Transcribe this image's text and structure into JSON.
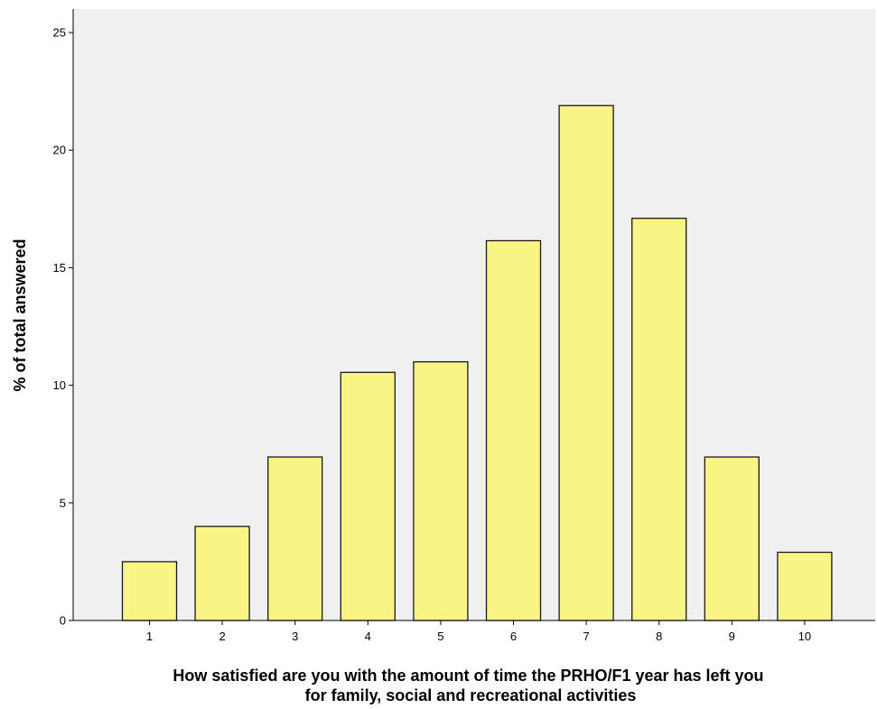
{
  "chart_data": {
    "type": "bar",
    "categories": [
      "1",
      "2",
      "3",
      "4",
      "5",
      "6",
      "7",
      "8",
      "9",
      "10"
    ],
    "values": [
      2.5,
      4.0,
      6.95,
      10.55,
      11.0,
      16.15,
      21.9,
      17.1,
      6.95,
      2.9
    ],
    "xlabel": "How satisfied are you with the amount of time the PRHO/F1 year has left you for family, social and recreational activities",
    "xlabel_lines": [
      "How satisfied are you with the amount of time the PRHO/F1 year has left you",
      "for family, social and recreational activities"
    ],
    "ylabel": "% of total answered",
    "ylim": [
      0,
      26
    ],
    "yticks": [
      0,
      5,
      10,
      15,
      20,
      25
    ],
    "grid": false,
    "colors": {
      "bar_fill": "#f8f584",
      "bar_stroke": "#1a1a1a",
      "plot_background": "#f0f0f0",
      "axis": "#000000"
    }
  }
}
